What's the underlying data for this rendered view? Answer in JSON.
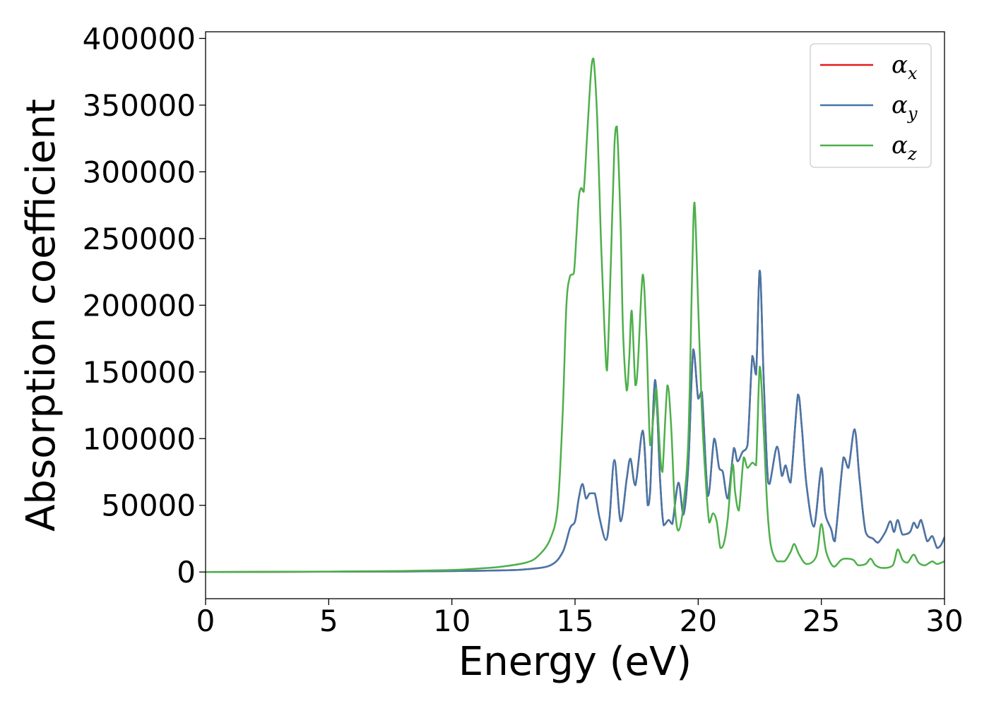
{
  "chart_data": {
    "type": "line",
    "title": "",
    "xlabel": "Energy (eV)",
    "ylabel": "Absorption coefficient",
    "xlim": [
      0,
      30
    ],
    "ylim": [
      -20000,
      405000
    ],
    "xticks": [
      0,
      5,
      10,
      15,
      20,
      25,
      30
    ],
    "xtick_labels": [
      "0",
      "5",
      "10",
      "15",
      "20",
      "25",
      "30"
    ],
    "yticks": [
      0,
      50000,
      100000,
      150000,
      200000,
      250000,
      300000,
      350000,
      400000
    ],
    "ytick_labels": [
      "0",
      "50000",
      "100000",
      "150000",
      "200000",
      "250000",
      "300000",
      "350000",
      "400000"
    ],
    "grid": false,
    "legend_position": "top-right",
    "series": [
      {
        "name": "α",
        "name_sub": "x",
        "color": "#e41a1c",
        "points": [
          [
            0,
            0
          ],
          [
            5,
            200
          ],
          [
            8,
            400
          ],
          [
            10,
            700
          ],
          [
            12,
            1200
          ],
          [
            13,
            2000
          ],
          [
            14,
            5000
          ],
          [
            14.5,
            15000
          ],
          [
            14.8,
            33000
          ],
          [
            15,
            38000
          ],
          [
            15.15,
            55000
          ],
          [
            15.3,
            66000
          ],
          [
            15.45,
            55000
          ],
          [
            15.6,
            59000
          ],
          [
            15.8,
            59000
          ],
          [
            16,
            40000
          ],
          [
            16.25,
            24000
          ],
          [
            16.4,
            40000
          ],
          [
            16.6,
            84000
          ],
          [
            16.85,
            38000
          ],
          [
            17.1,
            70000
          ],
          [
            17.25,
            85000
          ],
          [
            17.45,
            65000
          ],
          [
            17.75,
            106000
          ],
          [
            17.95,
            50000
          ],
          [
            18.05,
            60000
          ],
          [
            18.25,
            144000
          ],
          [
            18.45,
            70000
          ],
          [
            18.6,
            35000
          ],
          [
            18.8,
            39000
          ],
          [
            18.95,
            36000
          ],
          [
            19.2,
            67000
          ],
          [
            19.4,
            43000
          ],
          [
            19.6,
            80000
          ],
          [
            19.8,
            167000
          ],
          [
            20,
            130000
          ],
          [
            20.15,
            135000
          ],
          [
            20.4,
            57000
          ],
          [
            20.65,
            100000
          ],
          [
            20.85,
            78000
          ],
          [
            21,
            75000
          ],
          [
            21.2,
            55000
          ],
          [
            21.45,
            93000
          ],
          [
            21.6,
            83000
          ],
          [
            21.8,
            90000
          ],
          [
            22,
            95000
          ],
          [
            22.2,
            162000
          ],
          [
            22.35,
            148000
          ],
          [
            22.5,
            226000
          ],
          [
            22.65,
            150000
          ],
          [
            22.8,
            78000
          ],
          [
            22.9,
            66000
          ],
          [
            23.2,
            94000
          ],
          [
            23.4,
            72000
          ],
          [
            23.55,
            80000
          ],
          [
            23.75,
            67000
          ],
          [
            24.05,
            133000
          ],
          [
            24.2,
            110000
          ],
          [
            24.4,
            65000
          ],
          [
            24.7,
            34000
          ],
          [
            25,
            78000
          ],
          [
            25.15,
            45000
          ],
          [
            25.4,
            32000
          ],
          [
            25.55,
            23000
          ],
          [
            25.9,
            86000
          ],
          [
            26.1,
            78000
          ],
          [
            26.35,
            107000
          ],
          [
            26.55,
            70000
          ],
          [
            26.8,
            30000
          ],
          [
            27.1,
            25000
          ],
          [
            27.3,
            22000
          ],
          [
            27.6,
            30000
          ],
          [
            27.8,
            38000
          ],
          [
            27.95,
            30000
          ],
          [
            28.1,
            39000
          ],
          [
            28.3,
            28000
          ],
          [
            28.6,
            30000
          ],
          [
            28.75,
            37000
          ],
          [
            28.9,
            33000
          ],
          [
            29.05,
            39000
          ],
          [
            29.3,
            23000
          ],
          [
            29.5,
            27000
          ],
          [
            29.7,
            18000
          ],
          [
            29.85,
            20000
          ],
          [
            30,
            26000
          ]
        ]
      },
      {
        "name": "α",
        "name_sub": "y",
        "color": "#4477aa",
        "points": [
          [
            0,
            0
          ],
          [
            5,
            200
          ],
          [
            8,
            400
          ],
          [
            10,
            700
          ],
          [
            12,
            1200
          ],
          [
            13,
            2000
          ],
          [
            14,
            5000
          ],
          [
            14.5,
            15000
          ],
          [
            14.8,
            33000
          ],
          [
            15,
            38000
          ],
          [
            15.15,
            55000
          ],
          [
            15.3,
            66000
          ],
          [
            15.45,
            55000
          ],
          [
            15.6,
            59000
          ],
          [
            15.8,
            59000
          ],
          [
            16,
            40000
          ],
          [
            16.25,
            24000
          ],
          [
            16.4,
            40000
          ],
          [
            16.6,
            84000
          ],
          [
            16.85,
            38000
          ],
          [
            17.1,
            70000
          ],
          [
            17.25,
            85000
          ],
          [
            17.45,
            65000
          ],
          [
            17.75,
            106000
          ],
          [
            17.95,
            50000
          ],
          [
            18.05,
            60000
          ],
          [
            18.25,
            144000
          ],
          [
            18.45,
            70000
          ],
          [
            18.6,
            35000
          ],
          [
            18.8,
            39000
          ],
          [
            18.95,
            36000
          ],
          [
            19.2,
            67000
          ],
          [
            19.4,
            43000
          ],
          [
            19.6,
            80000
          ],
          [
            19.8,
            167000
          ],
          [
            20,
            130000
          ],
          [
            20.15,
            135000
          ],
          [
            20.4,
            57000
          ],
          [
            20.65,
            100000
          ],
          [
            20.85,
            78000
          ],
          [
            21,
            75000
          ],
          [
            21.2,
            55000
          ],
          [
            21.45,
            93000
          ],
          [
            21.6,
            83000
          ],
          [
            21.8,
            90000
          ],
          [
            22,
            95000
          ],
          [
            22.2,
            162000
          ],
          [
            22.35,
            148000
          ],
          [
            22.5,
            226000
          ],
          [
            22.65,
            150000
          ],
          [
            22.8,
            78000
          ],
          [
            22.9,
            66000
          ],
          [
            23.2,
            94000
          ],
          [
            23.4,
            72000
          ],
          [
            23.55,
            80000
          ],
          [
            23.75,
            67000
          ],
          [
            24.05,
            133000
          ],
          [
            24.2,
            110000
          ],
          [
            24.4,
            65000
          ],
          [
            24.7,
            34000
          ],
          [
            25,
            78000
          ],
          [
            25.15,
            45000
          ],
          [
            25.4,
            32000
          ],
          [
            25.55,
            23000
          ],
          [
            25.9,
            86000
          ],
          [
            26.1,
            78000
          ],
          [
            26.35,
            107000
          ],
          [
            26.55,
            70000
          ],
          [
            26.8,
            30000
          ],
          [
            27.1,
            25000
          ],
          [
            27.3,
            22000
          ],
          [
            27.6,
            30000
          ],
          [
            27.8,
            38000
          ],
          [
            27.95,
            30000
          ],
          [
            28.1,
            39000
          ],
          [
            28.3,
            28000
          ],
          [
            28.6,
            30000
          ],
          [
            28.75,
            37000
          ],
          [
            28.9,
            33000
          ],
          [
            29.05,
            39000
          ],
          [
            29.3,
            23000
          ],
          [
            29.5,
            27000
          ],
          [
            29.7,
            18000
          ],
          [
            29.85,
            20000
          ],
          [
            30,
            26000
          ]
        ]
      },
      {
        "name": "α",
        "name_sub": "z",
        "color": "#4daf4a",
        "points": [
          [
            0,
            0
          ],
          [
            5,
            300
          ],
          [
            8,
            800
          ],
          [
            10,
            1500
          ],
          [
            11,
            2500
          ],
          [
            12,
            4000
          ],
          [
            13,
            7000
          ],
          [
            13.5,
            12000
          ],
          [
            14,
            25000
          ],
          [
            14.3,
            50000
          ],
          [
            14.5,
            120000
          ],
          [
            14.65,
            200000
          ],
          [
            14.8,
            222000
          ],
          [
            14.95,
            224000
          ],
          [
            15.05,
            250000
          ],
          [
            15.15,
            280000
          ],
          [
            15.25,
            288000
          ],
          [
            15.35,
            285000
          ],
          [
            15.5,
            330000
          ],
          [
            15.65,
            375000
          ],
          [
            15.75,
            385000
          ],
          [
            15.9,
            340000
          ],
          [
            16.05,
            250000
          ],
          [
            16.2,
            180000
          ],
          [
            16.3,
            151000
          ],
          [
            16.45,
            230000
          ],
          [
            16.6,
            320000
          ],
          [
            16.7,
            334000
          ],
          [
            16.85,
            260000
          ],
          [
            16.95,
            180000
          ],
          [
            17.1,
            136000
          ],
          [
            17.2,
            160000
          ],
          [
            17.3,
            196000
          ],
          [
            17.45,
            140000
          ],
          [
            17.55,
            155000
          ],
          [
            17.75,
            223000
          ],
          [
            17.9,
            175000
          ],
          [
            18.05,
            95000
          ],
          [
            18.2,
            120000
          ],
          [
            18.3,
            138000
          ],
          [
            18.45,
            90000
          ],
          [
            18.55,
            75000
          ],
          [
            18.75,
            140000
          ],
          [
            18.9,
            110000
          ],
          [
            19.05,
            50000
          ],
          [
            19.2,
            31000
          ],
          [
            19.4,
            50000
          ],
          [
            19.6,
            100000
          ],
          [
            19.75,
            220000
          ],
          [
            19.85,
            277000
          ],
          [
            20,
            200000
          ],
          [
            20.15,
            120000
          ],
          [
            20.3,
            70000
          ],
          [
            20.45,
            37000
          ],
          [
            20.6,
            44000
          ],
          [
            20.75,
            38000
          ],
          [
            20.9,
            18000
          ],
          [
            21.05,
            22000
          ],
          [
            21.2,
            40000
          ],
          [
            21.4,
            81000
          ],
          [
            21.5,
            60000
          ],
          [
            21.65,
            46000
          ],
          [
            21.85,
            86000
          ],
          [
            22,
            78000
          ],
          [
            22.2,
            82000
          ],
          [
            22.35,
            80000
          ],
          [
            22.5,
            154000
          ],
          [
            22.65,
            110000
          ],
          [
            22.8,
            50000
          ],
          [
            22.95,
            20000
          ],
          [
            23.2,
            8000
          ],
          [
            23.5,
            8000
          ],
          [
            23.75,
            15000
          ],
          [
            23.9,
            21000
          ],
          [
            24.1,
            13000
          ],
          [
            24.4,
            6000
          ],
          [
            24.8,
            12000
          ],
          [
            25,
            36000
          ],
          [
            25.2,
            15000
          ],
          [
            25.5,
            4000
          ],
          [
            25.8,
            9000
          ],
          [
            26,
            10000
          ],
          [
            26.3,
            9000
          ],
          [
            26.5,
            5000
          ],
          [
            26.8,
            6000
          ],
          [
            27,
            10000
          ],
          [
            27.2,
            5000
          ],
          [
            27.5,
            3000
          ],
          [
            27.9,
            5000
          ],
          [
            28.1,
            17000
          ],
          [
            28.3,
            9000
          ],
          [
            28.5,
            7000
          ],
          [
            28.75,
            13000
          ],
          [
            28.95,
            7000
          ],
          [
            29.2,
            5000
          ],
          [
            29.5,
            8000
          ],
          [
            29.7,
            6000
          ],
          [
            30,
            8000
          ]
        ]
      }
    ]
  }
}
